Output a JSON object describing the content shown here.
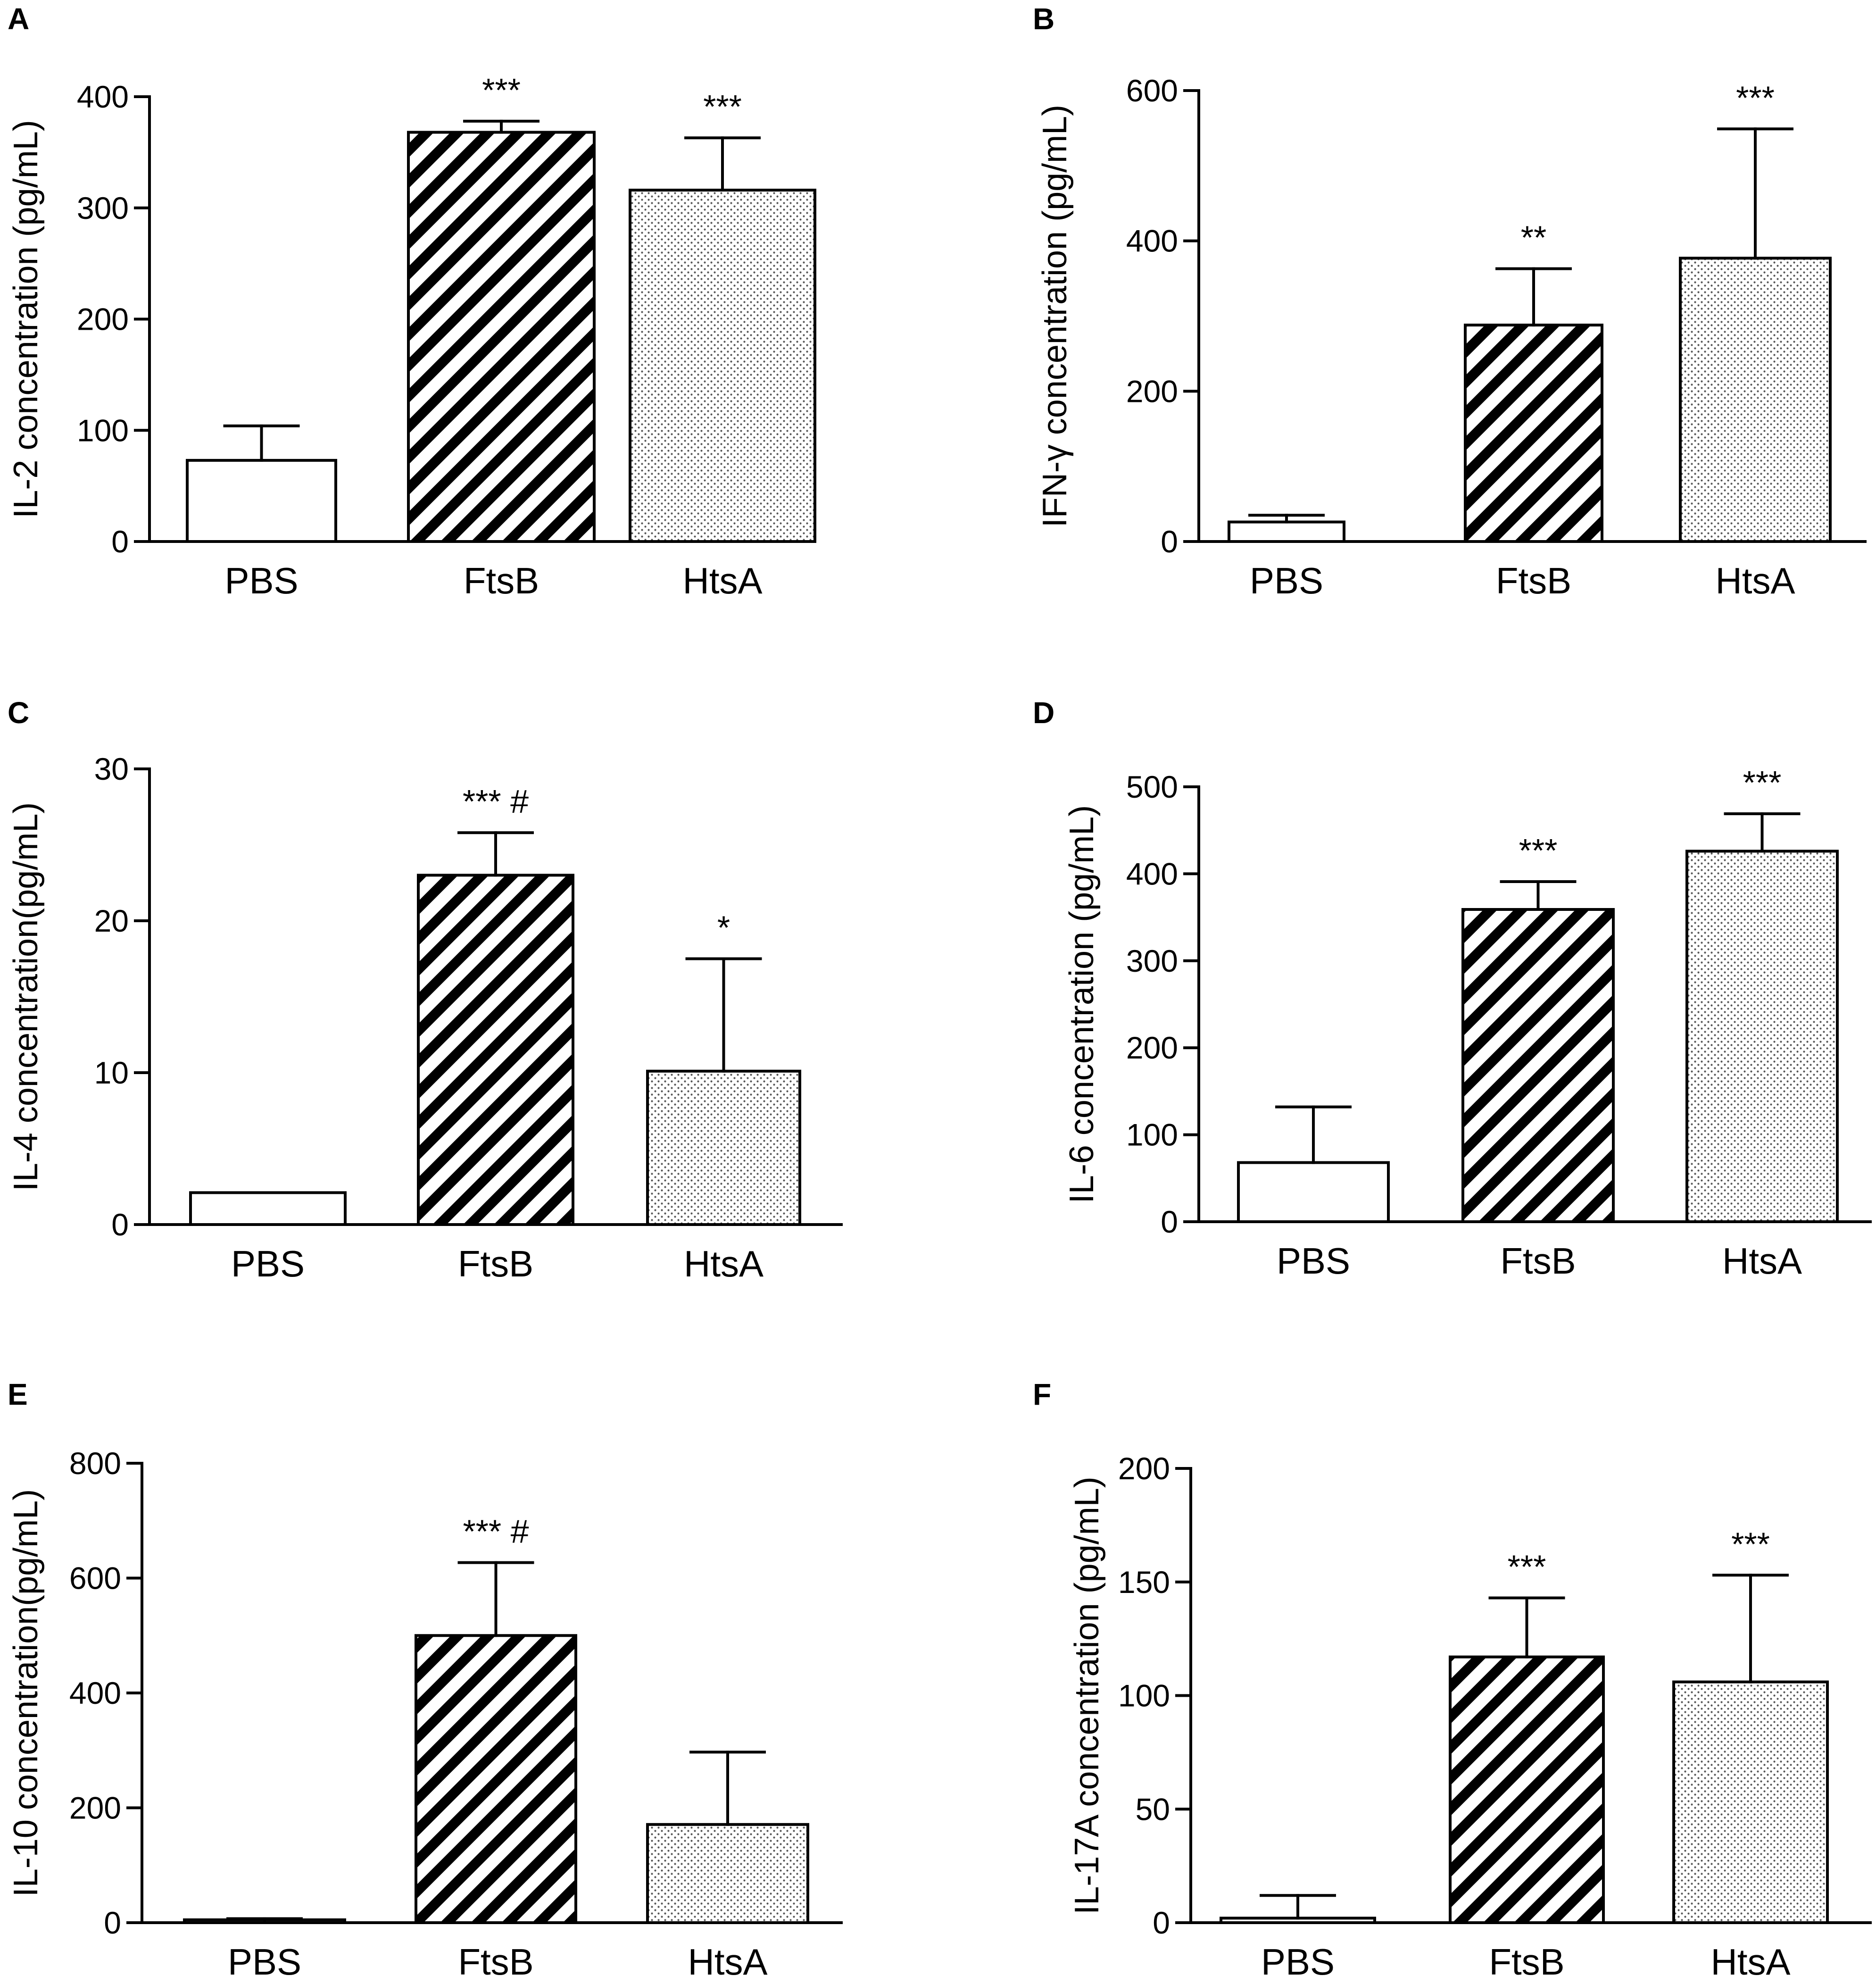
{
  "figure": {
    "patterns": {
      "PBS": "white",
      "FtsB": "diagonal-hatch",
      "HtsA": "dotted"
    },
    "colors": {
      "ink": "#000000",
      "background": "#ffffff",
      "dot": "#555555"
    }
  },
  "chart_data": [
    {
      "panel": "A",
      "type": "bar",
      "categories": [
        "PBS",
        "FtsB",
        "HtsA"
      ],
      "values": [
        73,
        368,
        316
      ],
      "errors": [
        31,
        10,
        47
      ],
      "significance": [
        "",
        "***",
        "***"
      ],
      "ylabel": "IL-2 concentration (pg/mL)",
      "ylim": [
        0,
        400
      ],
      "yticks": [
        "0",
        "100",
        "200",
        "300",
        "400"
      ]
    },
    {
      "panel": "B",
      "type": "bar",
      "categories": [
        "PBS",
        "FtsB",
        "HtsA"
      ],
      "values": [
        26,
        288,
        377
      ],
      "errors": [
        9,
        75,
        172
      ],
      "significance": [
        "",
        "**",
        "***"
      ],
      "ylabel": "IFN-γ concentration (pg/mL)",
      "ylim": [
        0,
        600
      ],
      "yticks": [
        "0",
        "200",
        "400",
        "600"
      ]
    },
    {
      "panel": "C",
      "type": "bar",
      "categories": [
        "PBS",
        "FtsB",
        "HtsA"
      ],
      "values": [
        2.1,
        23,
        10.1
      ],
      "errors": [
        0,
        2.8,
        7.4
      ],
      "significance": [
        "",
        "*** #",
        "*"
      ],
      "ylabel": "IL-4 concentration(pg/mL)",
      "ylim": [
        0,
        30
      ],
      "yticks": [
        "0",
        "10",
        "20",
        "30"
      ]
    },
    {
      "panel": "D",
      "type": "bar",
      "categories": [
        "PBS",
        "FtsB",
        "HtsA"
      ],
      "values": [
        68,
        359,
        426
      ],
      "errors": [
        64,
        32,
        43
      ],
      "significance": [
        "",
        "***",
        "***"
      ],
      "ylabel": "IL-6 concentration (pg/mL)",
      "ylim": [
        0,
        500
      ],
      "yticks": [
        "0",
        "100",
        "200",
        "300",
        "400",
        "500"
      ]
    },
    {
      "panel": "E",
      "type": "bar",
      "categories": [
        "PBS",
        "FtsB",
        "HtsA"
      ],
      "values": [
        5,
        500,
        171
      ],
      "errors": [
        2,
        127,
        126
      ],
      "significance": [
        "",
        "*** #",
        ""
      ],
      "ylabel": "IL-10 concentration(pg/mL)",
      "ylim": [
        0,
        800
      ],
      "yticks": [
        "0",
        "200",
        "400",
        "600",
        "800"
      ]
    },
    {
      "panel": "F",
      "type": "bar",
      "categories": [
        "PBS",
        "FtsB",
        "HtsA"
      ],
      "values": [
        2,
        117,
        106
      ],
      "errors": [
        10,
        26,
        47
      ],
      "significance": [
        "",
        "***",
        "***"
      ],
      "ylabel": "IL-17A concentration (pg/mL)",
      "ylim": [
        0,
        200
      ],
      "yticks": [
        "0",
        "50",
        "100",
        "150",
        "200"
      ]
    }
  ]
}
